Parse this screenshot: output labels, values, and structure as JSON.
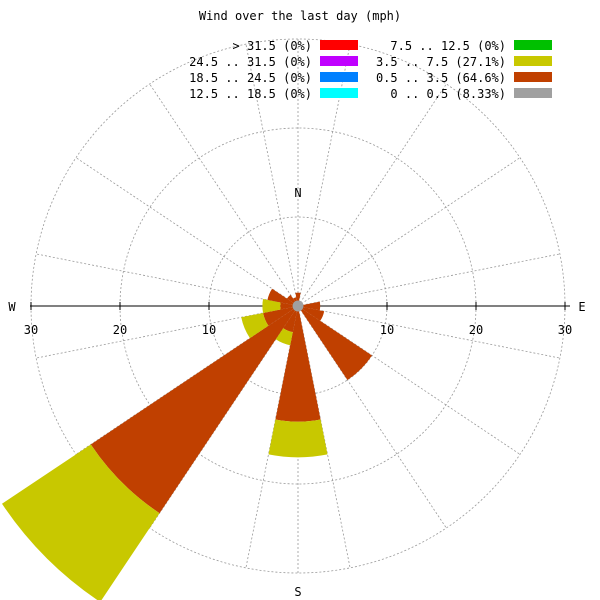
{
  "chart_data": {
    "type": "wind-rose",
    "title": "Wind over the last day (mph)",
    "compass": {
      "north": "N",
      "south": "S",
      "east": "E",
      "west": "W"
    },
    "radial_ticks": [
      10,
      20,
      30
    ],
    "radial_max": 30,
    "ring_values": [
      10,
      20,
      30
    ],
    "legend": [
      {
        "label": "> 31.5 (0%)",
        "color": "#ff0000"
      },
      {
        "label": "24.5 .. 31.5 (0%)",
        "color": "#c000ff"
      },
      {
        "label": "18.5 .. 24.5 (0%)",
        "color": "#0080ff"
      },
      {
        "label": "12.5 .. 18.5 (0%)",
        "color": "#00ffff"
      },
      {
        "label": "7.5 .. 12.5 (0%)",
        "color": "#00c000"
      },
      {
        "label": "3.5 .. 7.5 (27.1%)",
        "color": "#c8c800"
      },
      {
        "label": "0.5 .. 3.5 (64.6%)",
        "color": "#c04000"
      },
      {
        "label": "0 .. 0.5 (8.33%)",
        "color": "#a0a0a0"
      }
    ],
    "calm_color": "#a0a0a0",
    "sector_width_deg": 22.5,
    "sectors": [
      {
        "direction_deg": 0,
        "segments": [
          {
            "bin": "0.5 .. 3.5",
            "to": 1.5
          }
        ]
      },
      {
        "direction_deg": 22.5,
        "segments": []
      },
      {
        "direction_deg": 45,
        "segments": []
      },
      {
        "direction_deg": 67.5,
        "segments": []
      },
      {
        "direction_deg": 90,
        "segments": [
          {
            "bin": "0.5 .. 3.5",
            "to": 2.5
          }
        ]
      },
      {
        "direction_deg": 112.5,
        "segments": [
          {
            "bin": "0.5 .. 3.5",
            "to": 3
          }
        ]
      },
      {
        "direction_deg": 135,
        "segments": [
          {
            "bin": "0.5 .. 3.5",
            "to": 10
          }
        ]
      },
      {
        "direction_deg": 157.5,
        "segments": []
      },
      {
        "direction_deg": 180,
        "segments": [
          {
            "bin": "0.5 .. 3.5",
            "to": 13
          },
          {
            "bin": "3.5 .. 7.5",
            "to": 17
          }
        ]
      },
      {
        "direction_deg": 202.5,
        "segments": [
          {
            "bin": "0.5 .. 3.5",
            "to": 3
          },
          {
            "bin": "3.5 .. 7.5",
            "to": 4.5
          }
        ]
      },
      {
        "direction_deg": 225,
        "segments": [
          {
            "bin": "0.5 .. 3.5",
            "to": 28
          },
          {
            "bin": "3.5 .. 7.5",
            "to": 40
          }
        ]
      },
      {
        "direction_deg": 247.5,
        "segments": [
          {
            "bin": "0.5 .. 3.5",
            "to": 4
          },
          {
            "bin": "3.5 .. 7.5",
            "to": 6.5
          }
        ]
      },
      {
        "direction_deg": 270,
        "segments": [
          {
            "bin": "0.5 .. 3.5",
            "to": 2
          },
          {
            "bin": "3.5 .. 7.5",
            "to": 4
          }
        ]
      },
      {
        "direction_deg": 292.5,
        "segments": [
          {
            "bin": "0.5 .. 3.5",
            "to": 3.5
          }
        ]
      },
      {
        "direction_deg": 315,
        "segments": [
          {
            "bin": "0.5 .. 3.5",
            "to": 1.5
          }
        ]
      },
      {
        "direction_deg": 337.5,
        "segments": [
          {
            "bin": "0.5 .. 3.5",
            "to": 1
          }
        ]
      }
    ],
    "calm_radius": 0.5,
    "grid": true
  }
}
